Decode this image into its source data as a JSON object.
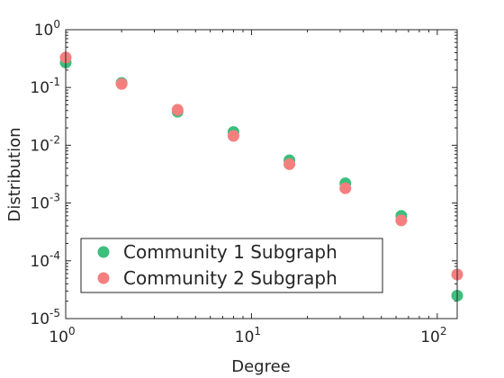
{
  "chart_data": {
    "type": "scatter",
    "xscale": "log",
    "yscale": "log",
    "xlim": [
      1,
      128
    ],
    "ylim": [
      1e-05,
      1
    ],
    "xlabel": "Degree",
    "ylabel": "Distribution",
    "xticks": [
      {
        "value": 1,
        "base": "10",
        "exp": "0"
      },
      {
        "value": 10,
        "base": "10",
        "exp": "1"
      },
      {
        "value": 100,
        "base": "10",
        "exp": "2"
      }
    ],
    "yticks": [
      {
        "value": 1e-05,
        "base": "10",
        "exp": "-5"
      },
      {
        "value": 0.0001,
        "base": "10",
        "exp": "-4"
      },
      {
        "value": 0.001,
        "base": "10",
        "exp": "-3"
      },
      {
        "value": 0.01,
        "base": "10",
        "exp": "-2"
      },
      {
        "value": 0.1,
        "base": "10",
        "exp": "-1"
      },
      {
        "value": 1,
        "base": "10",
        "exp": "0"
      }
    ],
    "legend_position": "bottom-left",
    "series": [
      {
        "name": "Community 1 Subgraph",
        "color": "#3DBE7D",
        "x": [
          1,
          2,
          4,
          8,
          16,
          32,
          64,
          128
        ],
        "y": [
          0.27,
          0.12,
          0.038,
          0.017,
          0.0055,
          0.0022,
          0.0006,
          2.5e-05
        ]
      },
      {
        "name": "Community 2 Subgraph",
        "color": "#F57F7F",
        "x": [
          1,
          2,
          4,
          8,
          16,
          32,
          64,
          128
        ],
        "y": [
          0.33,
          0.115,
          0.041,
          0.0145,
          0.0047,
          0.0018,
          0.0005,
          5.8e-05
        ]
      }
    ]
  }
}
